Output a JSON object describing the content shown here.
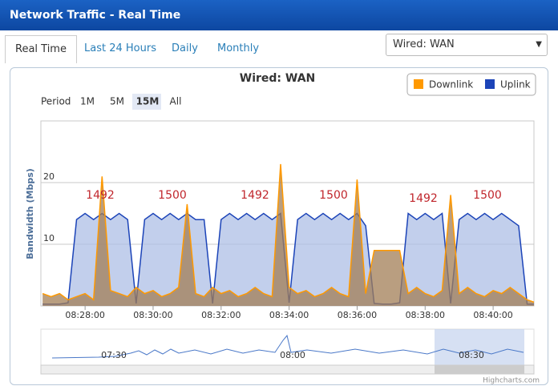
{
  "header": {
    "title": "Network Traffic - Real Time"
  },
  "tabs": [
    "Real Time",
    "Last 24 Hours",
    "Daily",
    "Monthly"
  ],
  "select": "Wired: WAN",
  "chart_data": {
    "type": "area",
    "title": "Wired: WAN",
    "period_label": "Period",
    "period_buttons": [
      "1M",
      "5M",
      "15M",
      "All"
    ],
    "y_label": "Bandwidth (Mbps)",
    "legend": "top-right",
    "grid": true,
    "x": [
      "08:26:45",
      "08:27:00",
      "08:27:15",
      "08:27:30",
      "08:27:45",
      "08:28:00",
      "08:28:15",
      "08:28:30",
      "08:28:45",
      "08:29:00",
      "08:29:15",
      "08:29:30",
      "08:29:45",
      "08:30:00",
      "08:30:15",
      "08:30:30",
      "08:30:45",
      "08:31:00",
      "08:31:15",
      "08:31:30",
      "08:31:45",
      "08:32:00",
      "08:32:15",
      "08:32:30",
      "08:32:45",
      "08:33:00",
      "08:33:15",
      "08:33:30",
      "08:33:45",
      "08:34:00",
      "08:34:15",
      "08:34:30",
      "08:34:45",
      "08:35:00",
      "08:35:15",
      "08:35:30",
      "08:35:45",
      "08:36:00",
      "08:36:15",
      "08:36:30",
      "08:36:45",
      "08:37:00",
      "08:37:15",
      "08:37:30",
      "08:37:45",
      "08:38:00",
      "08:38:15",
      "08:38:30",
      "08:38:45",
      "08:39:00",
      "08:39:15",
      "08:39:30",
      "08:39:45",
      "08:40:00",
      "08:40:15",
      "08:40:30",
      "08:40:45",
      "08:41:00",
      "08:41:15"
    ],
    "series": [
      {
        "name": "Uplink",
        "color": "#1c44b8",
        "fill": "#aebfe6",
        "values": [
          0.3,
          0.3,
          0.3,
          0.5,
          14,
          15,
          14,
          15,
          14,
          15,
          14,
          0.4,
          14,
          15,
          14,
          15,
          14,
          15,
          14,
          14,
          0.4,
          14,
          15,
          14,
          15,
          14,
          15,
          14,
          15,
          0.5,
          14,
          15,
          14,
          15,
          14,
          15,
          14,
          15,
          13,
          0.4,
          0.3,
          0.3,
          0.5,
          15,
          14,
          15,
          14,
          15,
          0.4,
          14,
          15,
          14,
          15,
          14,
          15,
          14,
          13,
          0.3,
          0.3
        ]
      },
      {
        "name": "Downlink",
        "color": "#ff9900",
        "fill": "#a27e56",
        "values": [
          2,
          1.5,
          2,
          1,
          1.5,
          2,
          1,
          21,
          2.5,
          2,
          1.5,
          3,
          2,
          2.5,
          1.5,
          2,
          3,
          16.5,
          2,
          1.5,
          3,
          2,
          2.5,
          1.5,
          2,
          3,
          2,
          1.5,
          23,
          3,
          2,
          2.5,
          1.5,
          2,
          3,
          2,
          1.5,
          20.5,
          2,
          9,
          9,
          9,
          9,
          2,
          3,
          2,
          1.5,
          2.5,
          18,
          2,
          3,
          2,
          1.5,
          2.5,
          2,
          3,
          2,
          1,
          0.5
        ]
      }
    ],
    "xlim": [
      "08:26:42",
      "08:41:12"
    ],
    "xticks": [
      "08:28:00",
      "08:30:00",
      "08:32:00",
      "08:34:00",
      "08:36:00",
      "08:38:00",
      "08:40:00"
    ],
    "ylim": [
      0,
      30
    ],
    "yticks": [
      10,
      20
    ],
    "annotations": [
      "1492",
      "1500",
      "1492",
      "1500",
      "1492",
      "1500"
    ],
    "navigator_ticks": [
      "07:30",
      "08:00",
      "08:30"
    ],
    "credits": "Highcharts.com"
  }
}
